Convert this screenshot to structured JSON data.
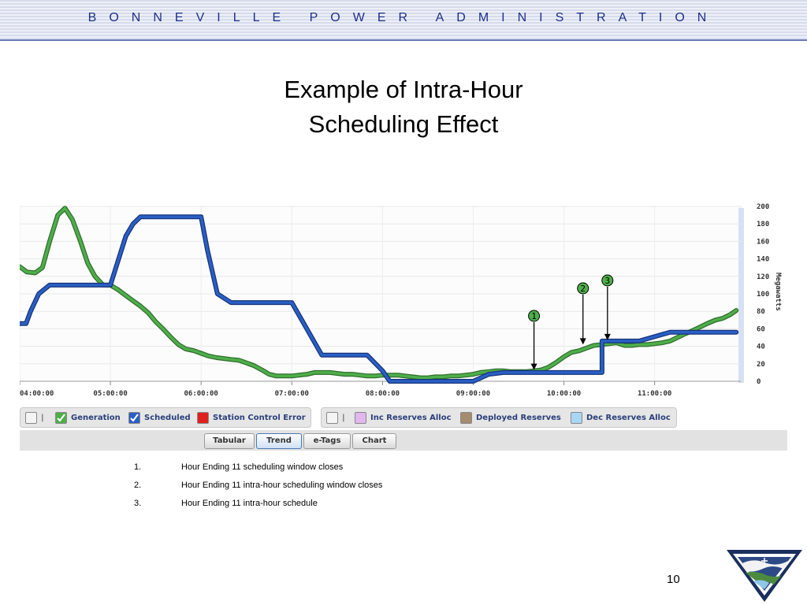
{
  "header": {
    "org": "BONNEVILLE POWER ADMINISTRATION"
  },
  "slide": {
    "title_line1": "Example of Intra-Hour",
    "title_line2": "Scheduling Effect",
    "page_number": "10"
  },
  "legend": {
    "group1": [
      {
        "label": "Generation",
        "color": "#4fae4a",
        "checked": true
      },
      {
        "label": "Scheduled",
        "color": "#2a5fc4",
        "checked": true
      },
      {
        "label": "Station Control Error",
        "color": "#e02020",
        "checked": false
      }
    ],
    "group2": [
      {
        "label": "Inc Reserves Alloc",
        "color": "#e3b6ef",
        "checked": false
      },
      {
        "label": "Deployed Reserves",
        "color": "#a48c6c",
        "checked": false
      },
      {
        "label": "Dec Reserves Alloc",
        "color": "#a9d6f5",
        "checked": false
      }
    ],
    "separator": "|"
  },
  "tabs": [
    "Tabular",
    "Trend",
    "e-Tags",
    "Chart"
  ],
  "active_tab": "Trend",
  "notes": [
    {
      "num": "1.",
      "text": "Hour Ending 11 scheduling window closes"
    },
    {
      "num": "2.",
      "text": "Hour Ending 11 intra-hour scheduling window closes"
    },
    {
      "num": "3.",
      "text": "Hour Ending 11 intra-hour schedule"
    }
  ],
  "chart_data": {
    "type": "line",
    "xlabel": "",
    "ylabel": "Megawatts",
    "x_ticks": [
      "04:00:00",
      "05:00:00",
      "06:00:00",
      "07:00:00",
      "08:00:00",
      "09:00:00",
      "10:00:00",
      "11:00:00"
    ],
    "y_ticks": [
      0,
      20,
      40,
      60,
      80,
      100,
      120,
      140,
      160,
      180,
      200
    ],
    "ylim": [
      0,
      200
    ],
    "xlim_hours": [
      4.0,
      11.95
    ],
    "colors": {
      "Generation": "#4fae4a",
      "Scheduled": "#2a5fc4"
    },
    "series": [
      {
        "name": "Generation",
        "points": [
          [
            4.0,
            131
          ],
          [
            4.08,
            125
          ],
          [
            4.17,
            124
          ],
          [
            4.25,
            130
          ],
          [
            4.33,
            160
          ],
          [
            4.42,
            190
          ],
          [
            4.5,
            198
          ],
          [
            4.58,
            185
          ],
          [
            4.67,
            160
          ],
          [
            4.75,
            135
          ],
          [
            4.83,
            120
          ],
          [
            4.92,
            110
          ],
          [
            5.0,
            110
          ],
          [
            5.08,
            105
          ],
          [
            5.17,
            98
          ],
          [
            5.25,
            92
          ],
          [
            5.33,
            86
          ],
          [
            5.42,
            78
          ],
          [
            5.5,
            68
          ],
          [
            5.58,
            60
          ],
          [
            5.67,
            50
          ],
          [
            5.75,
            42
          ],
          [
            5.83,
            37
          ],
          [
            5.92,
            35
          ],
          [
            6.0,
            32
          ],
          [
            6.08,
            29
          ],
          [
            6.17,
            27
          ],
          [
            6.25,
            26
          ],
          [
            6.33,
            25
          ],
          [
            6.42,
            24
          ],
          [
            6.5,
            21
          ],
          [
            6.58,
            18
          ],
          [
            6.67,
            13
          ],
          [
            6.75,
            8
          ],
          [
            6.83,
            6
          ],
          [
            6.92,
            6
          ],
          [
            7.0,
            6
          ],
          [
            7.08,
            7
          ],
          [
            7.17,
            8
          ],
          [
            7.25,
            10
          ],
          [
            7.33,
            10
          ],
          [
            7.42,
            10
          ],
          [
            7.5,
            9
          ],
          [
            7.58,
            8
          ],
          [
            7.67,
            8
          ],
          [
            7.75,
            7
          ],
          [
            7.83,
            6
          ],
          [
            7.92,
            6
          ],
          [
            8.0,
            7
          ],
          [
            8.08,
            7
          ],
          [
            8.17,
            7
          ],
          [
            8.25,
            6
          ],
          [
            8.33,
            5
          ],
          [
            8.42,
            4
          ],
          [
            8.5,
            4
          ],
          [
            8.58,
            5
          ],
          [
            8.67,
            5
          ],
          [
            8.75,
            6
          ],
          [
            8.83,
            6
          ],
          [
            8.92,
            7
          ],
          [
            9.0,
            8
          ],
          [
            9.08,
            10
          ],
          [
            9.17,
            11
          ],
          [
            9.25,
            12
          ],
          [
            9.33,
            12
          ],
          [
            9.42,
            11
          ],
          [
            9.5,
            11
          ],
          [
            9.58,
            11
          ],
          [
            9.67,
            12
          ],
          [
            9.75,
            13
          ],
          [
            9.83,
            16
          ],
          [
            9.92,
            22
          ],
          [
            10.0,
            28
          ],
          [
            10.08,
            33
          ],
          [
            10.17,
            35
          ],
          [
            10.25,
            38
          ],
          [
            10.33,
            41
          ],
          [
            10.42,
            42
          ],
          [
            10.5,
            43
          ],
          [
            10.58,
            44
          ],
          [
            10.67,
            41
          ],
          [
            10.75,
            41
          ],
          [
            10.83,
            42
          ],
          [
            10.92,
            42
          ],
          [
            11.0,
            43
          ],
          [
            11.08,
            44
          ],
          [
            11.17,
            46
          ],
          [
            11.25,
            50
          ],
          [
            11.33,
            54
          ],
          [
            11.42,
            58
          ],
          [
            11.5,
            62
          ],
          [
            11.58,
            66
          ],
          [
            11.67,
            70
          ],
          [
            11.75,
            72
          ],
          [
            11.83,
            76
          ],
          [
            11.9,
            81
          ]
        ]
      },
      {
        "name": "Scheduled",
        "points": [
          [
            4.0,
            66
          ],
          [
            4.07,
            66
          ],
          [
            4.12,
            80
          ],
          [
            4.21,
            100
          ],
          [
            4.33,
            110
          ],
          [
            4.67,
            110
          ],
          [
            5.0,
            110
          ],
          [
            5.17,
            166
          ],
          [
            5.25,
            180
          ],
          [
            5.33,
            188
          ],
          [
            6.0,
            188
          ],
          [
            6.07,
            150
          ],
          [
            6.18,
            100
          ],
          [
            6.33,
            90
          ],
          [
            7.0,
            90
          ],
          [
            7.33,
            30
          ],
          [
            7.67,
            30
          ],
          [
            7.83,
            30
          ],
          [
            8.0,
            12
          ],
          [
            8.08,
            0
          ],
          [
            9.0,
            0
          ],
          [
            9.17,
            8
          ],
          [
            9.33,
            10
          ],
          [
            9.67,
            10
          ],
          [
            10.0,
            10
          ],
          [
            10.42,
            10
          ],
          [
            10.42,
            46
          ],
          [
            10.83,
            46
          ],
          [
            11.17,
            56
          ],
          [
            11.58,
            56
          ],
          [
            11.9,
            56
          ]
        ]
      }
    ],
    "annotations": [
      {
        "label": "1",
        "x_hours": 9.67,
        "y": 13
      },
      {
        "label": "2",
        "x_hours": 10.21,
        "y": 42
      },
      {
        "label": "3",
        "x_hours": 10.48,
        "y": 47
      }
    ]
  }
}
